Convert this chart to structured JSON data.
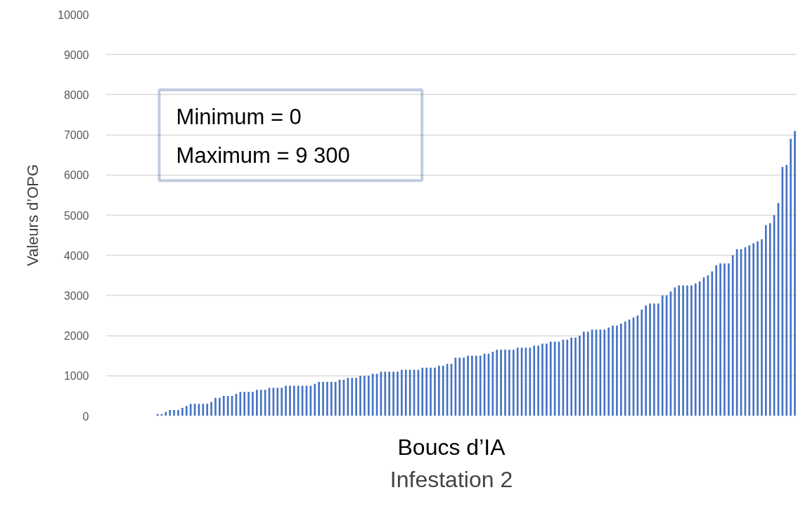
{
  "chart_data": {
    "type": "bar",
    "title": "Infestation 2",
    "xlabel": "Boucs d’IA",
    "ylabel": "Valeurs d’OPG",
    "annotations": [
      "Minimum = 0",
      "Maximum =  9 300"
    ],
    "categories": [
      null,
      null,
      null,
      null,
      null,
      null,
      null,
      null,
      null,
      null,
      null,
      null,
      null,
      null,
      null,
      null,
      null,
      null,
      null,
      null,
      null,
      null,
      null,
      null,
      null,
      null,
      null,
      null,
      null,
      null,
      null,
      null,
      null,
      null,
      null,
      null,
      null,
      null,
      null,
      null,
      null,
      null,
      null,
      null,
      null,
      null,
      null,
      null,
      null,
      null,
      null,
      null,
      null,
      null,
      null,
      null,
      null,
      null,
      null,
      null,
      null,
      null,
      null,
      null,
      null,
      null,
      null,
      null,
      null,
      null,
      null,
      null,
      null,
      null,
      null,
      null,
      null,
      null,
      null,
      null,
      null,
      null,
      null,
      null,
      null,
      null,
      null,
      null,
      null,
      null,
      null,
      null,
      null,
      null,
      null,
      null,
      null,
      null,
      null,
      null,
      null,
      null,
      null,
      null,
      null,
      null,
      null,
      null,
      null,
      null,
      null,
      null,
      null,
      null,
      null,
      null,
      null,
      null,
      null,
      null,
      null,
      null,
      null,
      null,
      null,
      null,
      null,
      null,
      null,
      null,
      null,
      null,
      null,
      null,
      null,
      null,
      null,
      null,
      null,
      null,
      null,
      null,
      null,
      null,
      null,
      null,
      null,
      null,
      null,
      null,
      null,
      null,
      null,
      null,
      null,
      null,
      null,
      null,
      null,
      null,
      null,
      null,
      null,
      null,
      null,
      null,
      null
    ],
    "color": "#4472c4",
    "values": [
      0,
      0,
      0,
      0,
      0,
      0,
      0,
      0,
      0,
      0,
      0,
      0,
      50,
      50,
      100,
      150,
      150,
      150,
      200,
      250,
      300,
      300,
      300,
      300,
      300,
      350,
      450,
      450,
      500,
      500,
      500,
      550,
      600,
      600,
      600,
      600,
      650,
      650,
      650,
      700,
      700,
      700,
      700,
      750,
      750,
      750,
      750,
      750,
      750,
      750,
      800,
      850,
      850,
      850,
      850,
      850,
      900,
      900,
      950,
      950,
      950,
      1000,
      1000,
      1000,
      1050,
      1050,
      1100,
      1100,
      1100,
      1100,
      1100,
      1150,
      1150,
      1150,
      1150,
      1150,
      1200,
      1200,
      1200,
      1200,
      1250,
      1250,
      1300,
      1300,
      1450,
      1450,
      1450,
      1500,
      1500,
      1500,
      1500,
      1550,
      1550,
      1600,
      1650,
      1650,
      1650,
      1650,
      1650,
      1700,
      1700,
      1700,
      1700,
      1750,
      1750,
      1800,
      1800,
      1850,
      1850,
      1850,
      1900,
      1900,
      1950,
      1950,
      2000,
      2100,
      2100,
      2150,
      2150,
      2150,
      2150,
      2200,
      2250,
      2250,
      2300,
      2350,
      2400,
      2450,
      2500,
      2650,
      2750,
      2800,
      2800,
      2800,
      3000,
      3000,
      3100,
      3200,
      3250,
      3250,
      3250,
      3250,
      3300,
      3350,
      3450,
      3500,
      3600,
      3750,
      3800,
      3800,
      3800,
      4000,
      4150,
      4150,
      4200,
      4250,
      4300,
      4350,
      4400,
      4750,
      4800,
      5000,
      5300,
      6200,
      6250,
      6900,
      7100
    ],
    "ylim": [
      0,
      10000
    ],
    "yticks": [
      0,
      1000,
      2000,
      3000,
      4000,
      5000,
      6000,
      7000,
      8000,
      9000,
      10000
    ],
    "grid": "y",
    "tick_labels": "y"
  }
}
